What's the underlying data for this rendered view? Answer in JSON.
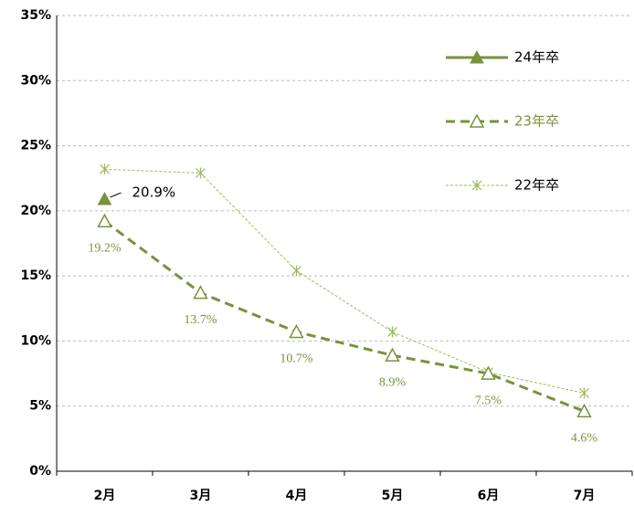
{
  "chart_data": {
    "type": "line",
    "categories": [
      "2月",
      "3月",
      "4月",
      "5月",
      "6月",
      "7月"
    ],
    "series": [
      {
        "name": "24年卒",
        "color": "#77933c",
        "values": [
          20.9,
          null,
          null,
          null,
          null,
          null
        ],
        "value_labels": [
          "20.9%",
          null,
          null,
          null,
          null,
          null
        ]
      },
      {
        "name": "23年卒",
        "color": "#77933c",
        "values": [
          19.2,
          13.7,
          10.7,
          8.9,
          7.5,
          4.6
        ],
        "value_labels": [
          "19.2%",
          "13.7%",
          "10.7%",
          "8.9%",
          "7.5%",
          "4.6%"
        ]
      },
      {
        "name": "22年卒",
        "color": "#9bbb59",
        "values": [
          23.2,
          22.9,
          15.4,
          10.7,
          7.6,
          6.0
        ]
      }
    ],
    "ylim": [
      0,
      35
    ],
    "yticks": [
      {
        "value": 0,
        "label": "0%"
      },
      {
        "value": 5,
        "label": "5%"
      },
      {
        "value": 10,
        "label": "10%"
      },
      {
        "value": 15,
        "label": "15%"
      },
      {
        "value": 20,
        "label": "20%"
      },
      {
        "value": 25,
        "label": "25%"
      },
      {
        "value": 30,
        "label": "30%"
      },
      {
        "value": 35,
        "label": "35%"
      }
    ],
    "grid": true
  }
}
